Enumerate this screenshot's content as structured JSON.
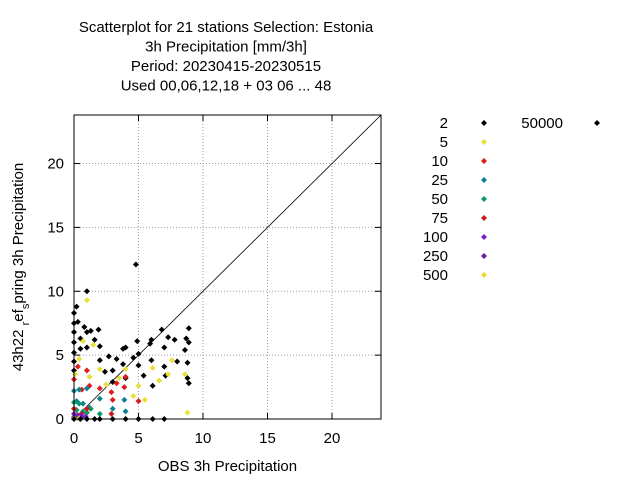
{
  "chart_data": {
    "type": "scatter",
    "title_lines": [
      "Scatterplot for   21 stations Selection: Estonia",
      "3h Precipitation [mm/3h]",
      "Period: 20230415-20230515",
      "Used  00,06,12,18  + 03 06 ... 48"
    ],
    "xlabel": "OBS 3h Precipitation",
    "ylabel": "43h22 ref_s pring 3h Precipitation",
    "ylabel_parts": [
      {
        "text": "43h22 ",
        "shift": "normal"
      },
      {
        "text": "r",
        "shift": "sub"
      },
      {
        "text": "ef",
        "shift": "normal"
      },
      {
        "text": "s",
        "shift": "sub"
      },
      {
        "text": "pring 3h Precipitation",
        "shift": "normal"
      }
    ],
    "xlim": [
      0,
      23.8
    ],
    "ylim": [
      0,
      23.8
    ],
    "xticks": [
      0,
      5,
      10,
      15,
      20
    ],
    "yticks": [
      0,
      5,
      10,
      15,
      20
    ],
    "grid": true,
    "diagonal": true,
    "legend_placement": "right",
    "series": [
      {
        "name": "2",
        "color": "#000000",
        "points": [
          [
            0,
            8.3
          ],
          [
            0,
            7.5
          ],
          [
            0,
            6.8
          ],
          [
            0,
            6.0
          ],
          [
            0,
            5.2
          ],
          [
            0,
            4.5
          ],
          [
            0,
            3.8
          ],
          [
            0.2,
            8.8
          ],
          [
            0.3,
            7.6
          ],
          [
            0.5,
            6.3
          ],
          [
            0.5,
            5.5
          ],
          [
            0.8,
            7.2
          ],
          [
            1.0,
            10.0
          ],
          [
            1.0,
            6.8
          ],
          [
            1.0,
            5.6
          ],
          [
            1.3,
            6.9
          ],
          [
            1.6,
            6.2
          ],
          [
            1.9,
            7.0
          ],
          [
            2.0,
            5.7
          ],
          [
            2.0,
            4.6
          ],
          [
            2.4,
            3.7
          ],
          [
            2.7,
            4.9
          ],
          [
            3.0,
            3.8
          ],
          [
            3.0,
            2.9
          ],
          [
            3.3,
            4.7
          ],
          [
            3.8,
            5.5
          ],
          [
            3.8,
            4.3
          ],
          [
            4.0,
            5.6
          ],
          [
            4.0,
            3.2
          ],
          [
            4.6,
            4.8
          ],
          [
            4.8,
            12.1
          ],
          [
            4.9,
            6.1
          ],
          [
            5.0,
            5.1
          ],
          [
            5.0,
            4.2
          ],
          [
            5.4,
            3.4
          ],
          [
            5.9,
            5.9
          ],
          [
            6.0,
            6.2
          ],
          [
            6.0,
            4.6
          ],
          [
            6.1,
            2.6
          ],
          [
            6.8,
            7.0
          ],
          [
            7.0,
            5.6
          ],
          [
            7.0,
            4.1
          ],
          [
            7.1,
            3.4
          ],
          [
            7.3,
            6.4
          ],
          [
            7.8,
            6.2
          ],
          [
            8.0,
            4.5
          ],
          [
            8.6,
            5.4
          ],
          [
            8.7,
            6.3
          ],
          [
            8.8,
            4.4
          ],
          [
            8.8,
            3.2
          ],
          [
            8.9,
            7.1
          ],
          [
            8.9,
            6.0
          ],
          [
            8.9,
            2.8
          ]
        ]
      },
      {
        "name": "5",
        "color": "#e8e03a",
        "points": [
          [
            0.1,
            3.5
          ],
          [
            0.4,
            4.7
          ],
          [
            0.7,
            6.1
          ],
          [
            1.0,
            9.3
          ],
          [
            1.2,
            3.3
          ],
          [
            1.5,
            5.8
          ],
          [
            2.0,
            3.9
          ],
          [
            2.5,
            2.7
          ],
          [
            3.5,
            3.2
          ],
          [
            4.0,
            3.9
          ],
          [
            4.6,
            1.8
          ],
          [
            5.0,
            2.6
          ],
          [
            5.5,
            1.5
          ],
          [
            6.1,
            4.0
          ],
          [
            6.6,
            3.0
          ],
          [
            7.3,
            3.5
          ],
          [
            7.6,
            4.6
          ],
          [
            8.6,
            3.5
          ],
          [
            8.8,
            0.5
          ]
        ]
      },
      {
        "name": "10",
        "color": "#dd1c1c",
        "points": [
          [
            0,
            3.1
          ],
          [
            0.3,
            4.1
          ],
          [
            0.6,
            2.3
          ],
          [
            1.0,
            3.8
          ],
          [
            1.2,
            2.6
          ],
          [
            2.0,
            2.4
          ],
          [
            2.9,
            2.1
          ],
          [
            3.0,
            1.5
          ],
          [
            3.3,
            2.8
          ],
          [
            3.9,
            2.5
          ],
          [
            4.0,
            3.3
          ],
          [
            5.0,
            1.4
          ]
        ]
      },
      {
        "name": "25",
        "color": "#0f8090",
        "points": [
          [
            0,
            2.2
          ],
          [
            0.2,
            1.4
          ],
          [
            0.4,
            2.3
          ],
          [
            0.7,
            1.2
          ],
          [
            1.0,
            2.4
          ],
          [
            1.2,
            0.9
          ],
          [
            2.0,
            1.6
          ],
          [
            3.0,
            0.8
          ],
          [
            3.9,
            1.5
          ],
          [
            4.0,
            0.6
          ]
        ]
      },
      {
        "name": "50",
        "color": "#089a6c",
        "points": [
          [
            0,
            1.3
          ],
          [
            0.2,
            0.7
          ],
          [
            0.4,
            1.2
          ],
          [
            0.7,
            0.6
          ],
          [
            1.0,
            0.5
          ],
          [
            1.3,
            0.8
          ],
          [
            2.0,
            0.4
          ]
        ]
      },
      {
        "name": "75",
        "color": "#cc1818",
        "points": [
          [
            0,
            0.8
          ],
          [
            0.3,
            0.3
          ],
          [
            0.6,
            0.4
          ],
          [
            1.0,
            0.8
          ],
          [
            2.9,
            0.4
          ]
        ]
      },
      {
        "name": "100",
        "color": "#7a1fcf",
        "points": [
          [
            0,
            0.4
          ],
          [
            0.2,
            0.2
          ],
          [
            0.5,
            0.3
          ],
          [
            0.9,
            0.2
          ]
        ]
      },
      {
        "name": "250",
        "color": "#6a1fb0",
        "points": [
          [
            0,
            0.15
          ],
          [
            0.3,
            0.1
          ],
          [
            0.6,
            0.15
          ]
        ]
      },
      {
        "name": "500",
        "color": "#e8d838",
        "points": [
          [
            0,
            0.05
          ],
          [
            0.4,
            0.05
          ]
        ]
      },
      {
        "name": "50000",
        "color": "#000000",
        "points": [
          [
            0,
            0.0
          ],
          [
            0.5,
            0.0
          ],
          [
            1.0,
            0.0
          ],
          [
            1.6,
            0.0
          ],
          [
            2.0,
            0.0
          ],
          [
            3.0,
            0.0
          ],
          [
            4.0,
            0.0
          ],
          [
            5.0,
            0.0
          ],
          [
            6.1,
            0.0
          ],
          [
            7.0,
            0.0
          ]
        ]
      }
    ]
  }
}
